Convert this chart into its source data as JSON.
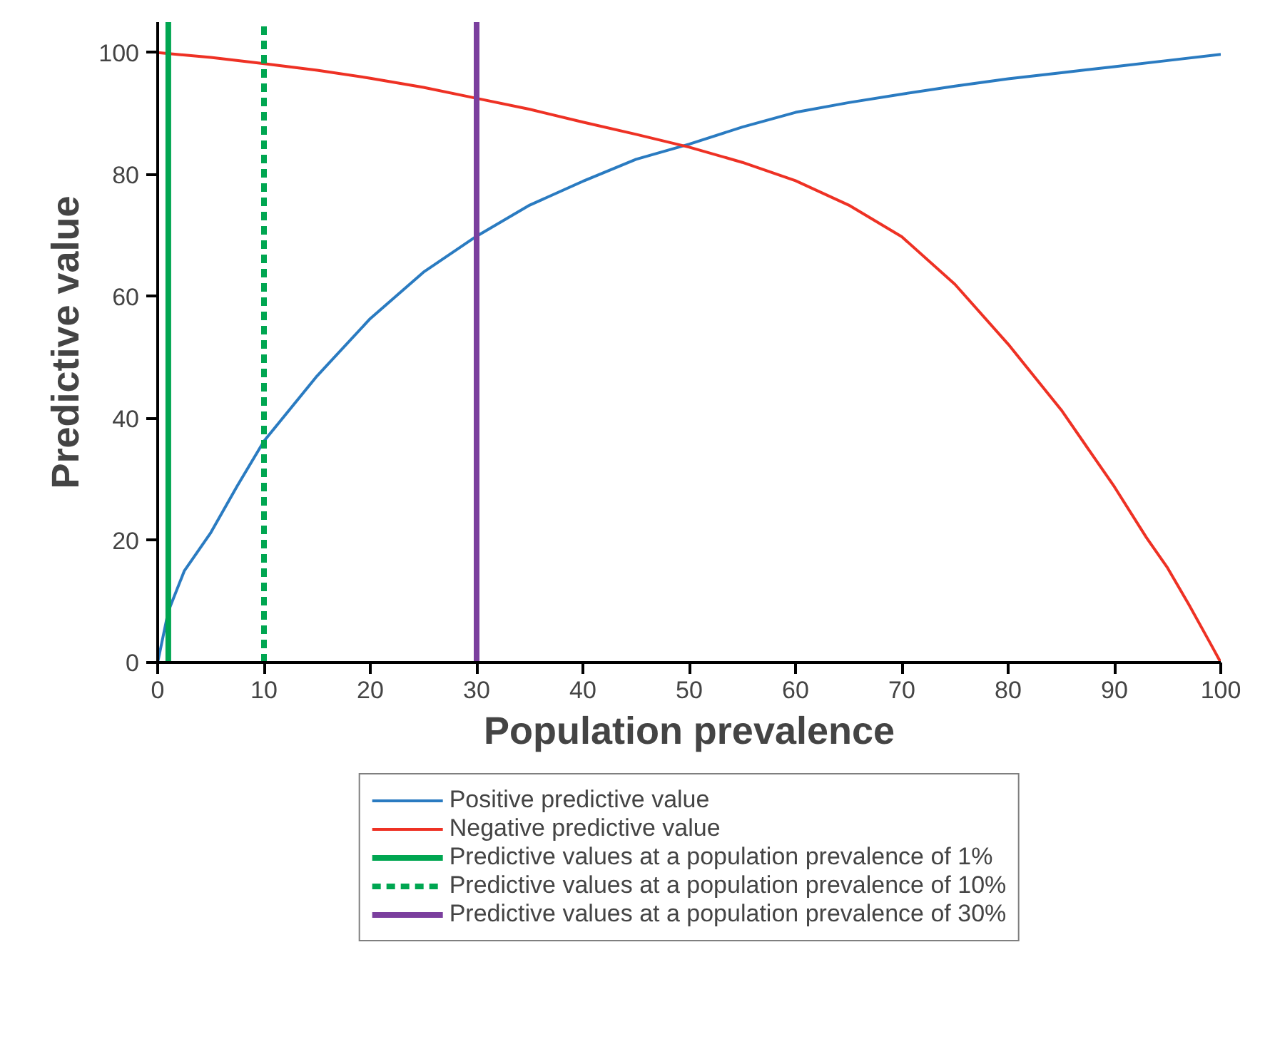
{
  "chart_data": {
    "type": "line",
    "xlabel": "Population prevalence",
    "ylabel": "Predictive value",
    "xlim": [
      0,
      100
    ],
    "ylim": [
      0,
      105
    ],
    "xticks": [
      0,
      10,
      20,
      30,
      40,
      50,
      60,
      70,
      80,
      90,
      100
    ],
    "yticks": [
      0,
      20,
      40,
      60,
      80,
      100
    ],
    "grid": false,
    "legend": "bottom",
    "marker": "none",
    "line_style": "solid",
    "series": [
      {
        "name": "Positive predictive value",
        "color": "#2a7bc1",
        "x": [
          0,
          1,
          2.5,
          5,
          7.5,
          10,
          15,
          20,
          25,
          30,
          35,
          40,
          45,
          50,
          55,
          60,
          65,
          70,
          75,
          80,
          85,
          90,
          95,
          100
        ],
        "values": [
          0,
          8.4,
          15,
          21.3,
          29,
          36.3,
          47,
          56.4,
          64,
          69.9,
          75,
          78.9,
          82.5,
          85,
          87.8,
          90.2,
          91.8,
          93.2,
          94.5,
          95.7,
          96.7,
          97.7,
          98.7,
          99.7
        ]
      },
      {
        "name": "Negative predictive value",
        "color": "#ee3124",
        "x": [
          0,
          5,
          10,
          15,
          20,
          25,
          30,
          35,
          40,
          45,
          50,
          55,
          60,
          65,
          70,
          75,
          80,
          85,
          90,
          93,
          95,
          97,
          99,
          100
        ],
        "values": [
          100,
          99.2,
          98.2,
          97.1,
          95.8,
          94.3,
          92.5,
          90.7,
          88.6,
          86.6,
          84.5,
          82,
          79,
          75,
          69.8,
          62,
          52.2,
          41.4,
          28.8,
          20.5,
          15.5,
          9.5,
          3.2,
          0
        ]
      }
    ],
    "ref_lines": [
      {
        "axis": "x",
        "value": 1,
        "label": "Predictive values at a population prevalence of 1%",
        "color": "#00a651",
        "line_style": "solid"
      },
      {
        "axis": "x",
        "value": 10,
        "label": "Predictive values at a population prevalence of 10%",
        "color": "#00a651",
        "line_style": "dashed"
      },
      {
        "axis": "x",
        "value": 30,
        "label": "Predictive values at a population prevalence of 30%",
        "color": "#7b3f9e",
        "line_style": "solid"
      }
    ]
  }
}
